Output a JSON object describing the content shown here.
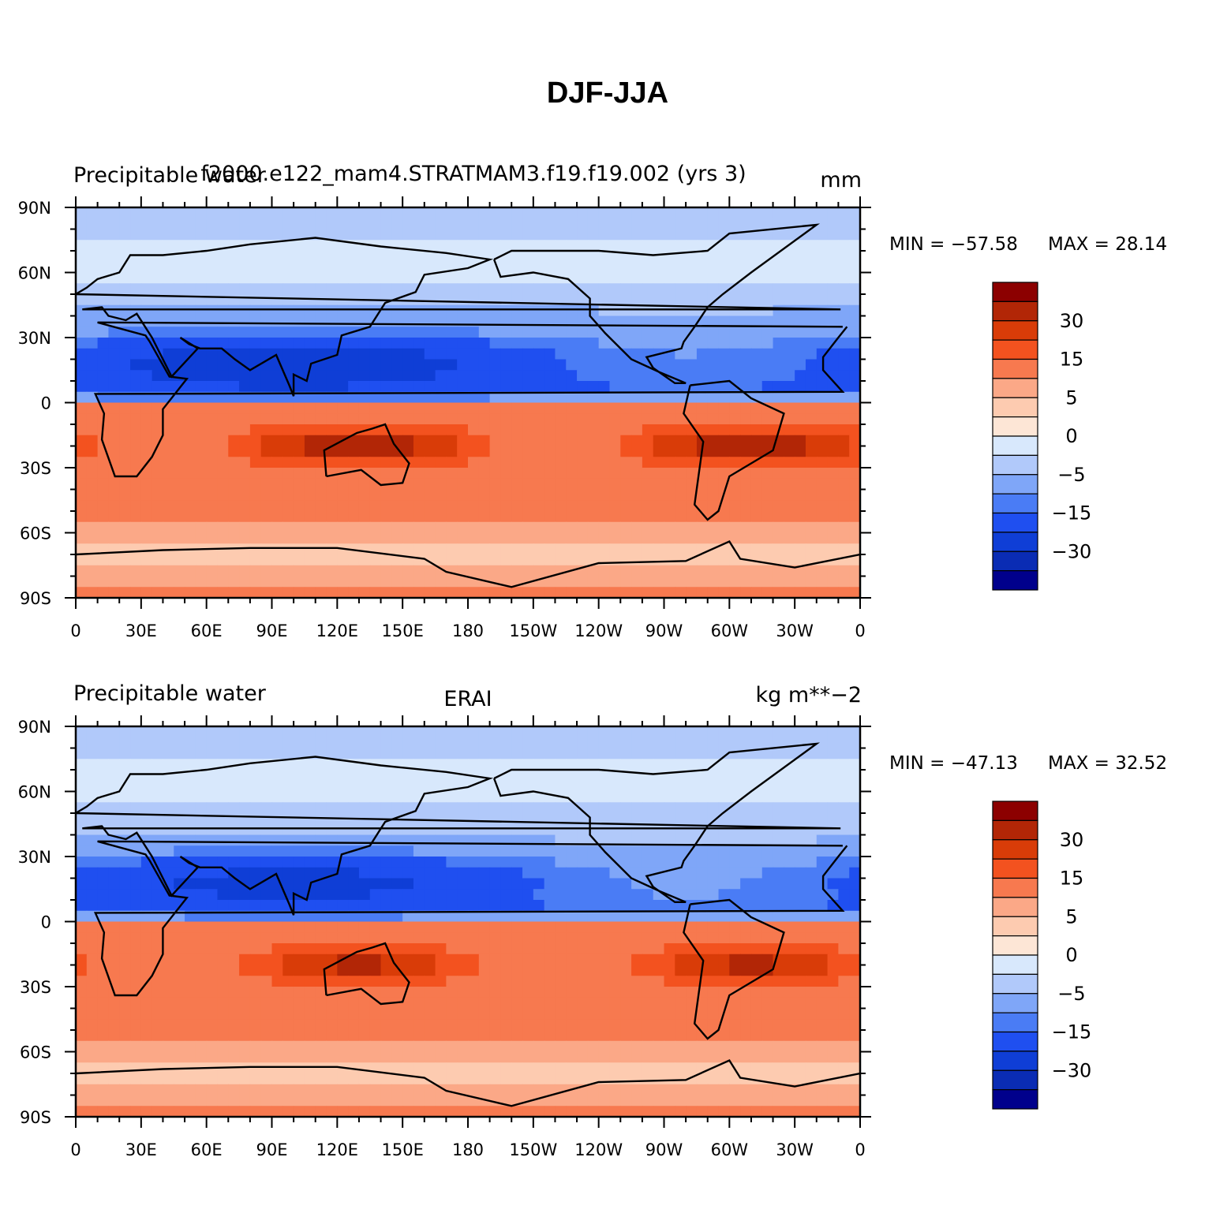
{
  "figure": {
    "title": "DJF-JJA"
  },
  "chart_data": [
    {
      "type": "heatmap",
      "left_label": "Precipitable water",
      "center_label": "f2000.e122_mam4.STRATMAM3.f19.f19.002 (yrs 3)",
      "right_label": "mm",
      "min_label": "MIN = −57.58",
      "max_label": "MAX =  28.14",
      "min": -57.58,
      "max": 28.14,
      "field": "south_warm_north_cold_model",
      "xticks": [
        "0",
        "30E",
        "60E",
        "90E",
        "120E",
        "150E",
        "180",
        "150W",
        "120W",
        "90W",
        "60W",
        "30W",
        "0"
      ],
      "yticks": [
        "90N",
        "60N",
        "30N",
        "0",
        "30S",
        "60S",
        "90S"
      ],
      "xlim": [
        0,
        360
      ],
      "ylim": [
        -90,
        90
      ],
      "colorbar_labels": [
        "30",
        "15",
        "5",
        "0",
        "−5",
        "−15",
        "−30"
      ],
      "colorbar_levels": [
        -50,
        -40,
        -30,
        -20,
        -15,
        -10,
        -5,
        -2,
        0,
        2,
        5,
        10,
        15,
        20,
        30,
        40
      ]
    },
    {
      "type": "heatmap",
      "left_label": "Precipitable water",
      "center_label": "ERAI",
      "right_label": "kg m**−2",
      "min_label": "MIN = −47.13",
      "max_label": "MAX =  32.52",
      "min": -47.13,
      "max": 32.52,
      "field": "south_warm_north_cold_obs",
      "xticks": [
        "0",
        "30E",
        "60E",
        "90E",
        "120E",
        "150E",
        "180",
        "150W",
        "120W",
        "90W",
        "60W",
        "30W",
        "0"
      ],
      "yticks": [
        "90N",
        "60N",
        "30N",
        "0",
        "30S",
        "60S",
        "90S"
      ],
      "xlim": [
        0,
        360
      ],
      "ylim": [
        -90,
        90
      ],
      "colorbar_labels": [
        "30",
        "15",
        "5",
        "0",
        "−5",
        "−15",
        "−30"
      ],
      "colorbar_levels": [
        -50,
        -40,
        -30,
        -20,
        -15,
        -10,
        -5,
        -2,
        0,
        2,
        5,
        10,
        15,
        20,
        30,
        40
      ]
    }
  ],
  "colors": {
    "palette": [
      "#00008c",
      "#0a2cb4",
      "#0f3ed6",
      "#1f4ff0",
      "#4a7cf5",
      "#7fa6f8",
      "#b1c9fa",
      "#d8e8fc",
      "#fde6d6",
      "#fdcbb0",
      "#fba887",
      "#f7794f",
      "#f3521f",
      "#d93c08",
      "#b22606",
      "#8c0000"
    ],
    "coastline": "#000000"
  }
}
